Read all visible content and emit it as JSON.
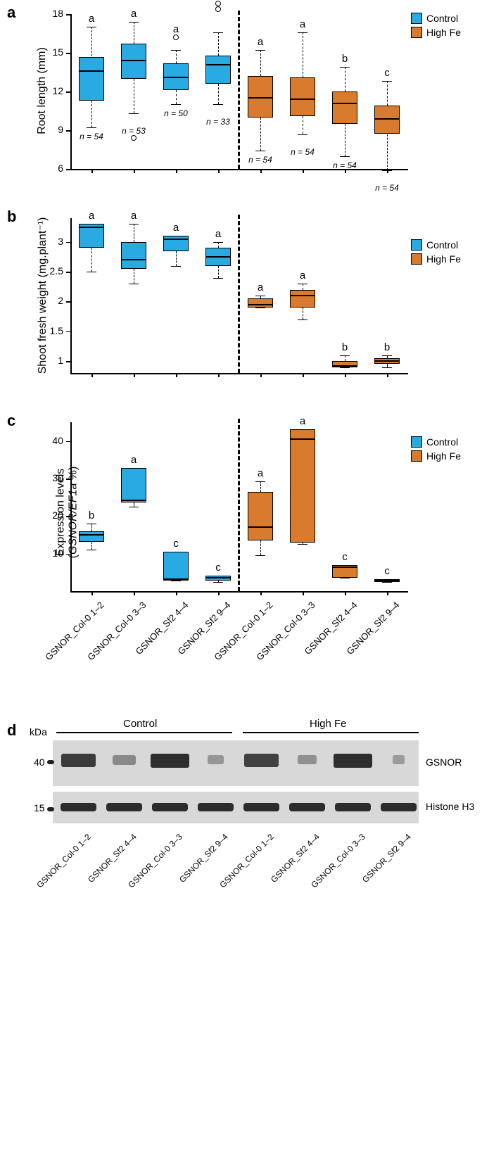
{
  "colors": {
    "control": "#29abe2",
    "highfe": "#d97b2e",
    "black": "#000000",
    "blot_bg": "#d8d8d8",
    "blot_band_dark": "#282828",
    "blot_band_light": "#5a5a5a"
  },
  "legend": {
    "control": "Control",
    "highfe": "High Fe"
  },
  "x_categories": [
    "GSNOR_Col-0 1–2",
    "GSNOR_Col-0 3–3",
    "GSNOR_Sf2 4–4",
    "GSNOR_Sf2 9–4"
  ],
  "panel_a": {
    "label": "a",
    "ylabel": "Root length (mm)",
    "ylim": [
      6,
      18
    ],
    "yticks": [
      6,
      9,
      12,
      15,
      18
    ],
    "boxes": [
      {
        "group": "control",
        "q1": 11.3,
        "median": 13.6,
        "q3": 14.7,
        "wlo": 9.2,
        "whi": 17.0,
        "sig": "a",
        "n": 54,
        "outliers": []
      },
      {
        "group": "control",
        "q1": 13.0,
        "median": 14.4,
        "q3": 15.7,
        "wlo": 10.3,
        "whi": 17.4,
        "sig": "a",
        "n": 53,
        "outliers": [
          8.4
        ]
      },
      {
        "group": "control",
        "q1": 12.1,
        "median": 13.1,
        "q3": 14.2,
        "wlo": 11.0,
        "whi": 15.2,
        "sig": "a",
        "n": 50,
        "outliers": [
          16.2
        ]
      },
      {
        "group": "control",
        "q1": 12.6,
        "median": 14.1,
        "q3": 14.8,
        "wlo": 11.0,
        "whi": 16.6,
        "sig": "a",
        "n": 33,
        "outliers": [
          18.4,
          18.8
        ]
      },
      {
        "group": "highfe",
        "q1": 10.0,
        "median": 11.5,
        "q3": 13.2,
        "wlo": 7.4,
        "whi": 15.2,
        "sig": "a",
        "n": 54,
        "outliers": []
      },
      {
        "group": "highfe",
        "q1": 10.1,
        "median": 11.4,
        "q3": 13.1,
        "wlo": 8.7,
        "whi": 16.6,
        "sig": "a",
        "n": 54,
        "outliers": []
      },
      {
        "group": "highfe",
        "q1": 9.5,
        "median": 11.1,
        "q3": 12.0,
        "wlo": 7.0,
        "whi": 13.9,
        "sig": "b",
        "n": 54,
        "outliers": []
      },
      {
        "group": "highfe",
        "q1": 8.7,
        "median": 9.9,
        "q3": 10.9,
        "wlo": 5.9,
        "whi": 12.8,
        "sig": "c",
        "n": 54,
        "outliers": []
      }
    ]
  },
  "panel_b": {
    "label": "b",
    "ylabel": "Shoot fresh weight (mg.plant⁻¹)",
    "ylim": [
      0.8,
      3.4
    ],
    "yticks": [
      1.0,
      1.5,
      2.0,
      2.5,
      3.0
    ],
    "boxes": [
      {
        "group": "control",
        "q1": 2.9,
        "median": 3.25,
        "q3": 3.3,
        "wlo": 2.5,
        "whi": 3.3,
        "sig": "a"
      },
      {
        "group": "control",
        "q1": 2.55,
        "median": 2.7,
        "q3": 3.0,
        "wlo": 2.3,
        "whi": 3.3,
        "sig": "a"
      },
      {
        "group": "control",
        "q1": 2.85,
        "median": 3.05,
        "q3": 3.1,
        "wlo": 2.6,
        "whi": 3.1,
        "sig": "a"
      },
      {
        "group": "control",
        "q1": 2.6,
        "median": 2.75,
        "q3": 2.9,
        "wlo": 2.4,
        "whi": 3.0,
        "sig": "a"
      },
      {
        "group": "highfe",
        "q1": 1.9,
        "median": 1.95,
        "q3": 2.05,
        "wlo": 1.9,
        "whi": 2.1,
        "sig": "a"
      },
      {
        "group": "highfe",
        "q1": 1.9,
        "median": 2.1,
        "q3": 2.2,
        "wlo": 1.7,
        "whi": 2.3,
        "sig": "a"
      },
      {
        "group": "highfe",
        "q1": 0.9,
        "median": 0.92,
        "q3": 1.0,
        "wlo": 0.9,
        "whi": 1.1,
        "sig": "b"
      },
      {
        "group": "highfe",
        "q1": 0.95,
        "median": 1.0,
        "q3": 1.05,
        "wlo": 0.9,
        "whi": 1.1,
        "sig": "b"
      }
    ]
  },
  "panel_c": {
    "label": "c",
    "ylabel": "Expression levels\n(GSNOR/EF1a %)",
    "ylabel_line1": "Expression levels",
    "ylabel_line2": "(GSNOR/EF1a %)",
    "ylim": [
      0,
      45
    ],
    "yticks": [
      10,
      20,
      30,
      40
    ],
    "boxes": [
      {
        "group": "control",
        "q1": 13.2,
        "median": 15.0,
        "q3": 16.0,
        "wlo": 11.1,
        "whi": 18.0,
        "sig": "b"
      },
      {
        "group": "control",
        "q1": 23.6,
        "median": 24.1,
        "q3": 32.8,
        "wlo": 22.5,
        "whi": 32.8,
        "sig": "a"
      },
      {
        "group": "control",
        "q1": 2.9,
        "median": 3.2,
        "q3": 10.5,
        "wlo": 2.9,
        "whi": 10.5,
        "sig": "c"
      },
      {
        "group": "control",
        "q1": 2.8,
        "median": 3.5,
        "q3": 4.2,
        "wlo": 2.5,
        "whi": 4.2,
        "sig": "c"
      },
      {
        "group": "highfe",
        "q1": 13.5,
        "median": 17.0,
        "q3": 26.5,
        "wlo": 9.5,
        "whi": 29.2,
        "sig": "a"
      },
      {
        "group": "highfe",
        "q1": 13.0,
        "median": 40.5,
        "q3": 43.2,
        "wlo": 12.5,
        "whi": 43.2,
        "sig": "a"
      },
      {
        "group": "highfe",
        "q1": 3.5,
        "median": 6.3,
        "q3": 7.0,
        "wlo": 3.5,
        "whi": 7.0,
        "sig": "c"
      },
      {
        "group": "highfe",
        "q1": 2.5,
        "median": 2.8,
        "q3": 3.2,
        "wlo": 2.5,
        "whi": 3.2,
        "sig": "c"
      }
    ]
  },
  "panel_d": {
    "label": "d",
    "kda_label": "kDa",
    "kda_40": "40",
    "kda_15": "15",
    "control_label": "Control",
    "highfe_label": "High Fe",
    "gsnor_label": "GSNOR",
    "histone_label": "Histone H3",
    "x_categories": [
      "GSNOR_Col-0 1–2",
      "GSNOR_Sf2 4–4",
      "GSNOR_Col-0 3–3",
      "GSNOR_Sf2 9–4",
      "GSNOR_Col-0 1–2",
      "GSNOR_Sf2 4–4",
      "GSNOR_Col-0 3–3",
      "GSNOR_Sf2 9–4"
    ],
    "gsnor_bands": [
      {
        "intensity": 0.85,
        "width": 0.9
      },
      {
        "intensity": 0.25,
        "width": 0.6
      },
      {
        "intensity": 0.95,
        "width": 1.0
      },
      {
        "intensity": 0.15,
        "width": 0.4
      },
      {
        "intensity": 0.8,
        "width": 0.9
      },
      {
        "intensity": 0.2,
        "width": 0.5
      },
      {
        "intensity": 0.95,
        "width": 1.0
      },
      {
        "intensity": 0.1,
        "width": 0.3
      }
    ],
    "histone_bands": [
      {
        "intensity": 0.9,
        "width": 0.95
      },
      {
        "intensity": 0.9,
        "width": 0.95
      },
      {
        "intensity": 0.9,
        "width": 0.95
      },
      {
        "intensity": 0.9,
        "width": 0.95
      },
      {
        "intensity": 0.9,
        "width": 0.95
      },
      {
        "intensity": 0.9,
        "width": 0.95
      },
      {
        "intensity": 0.9,
        "width": 0.95
      },
      {
        "intensity": 0.9,
        "width": 0.95
      }
    ]
  }
}
